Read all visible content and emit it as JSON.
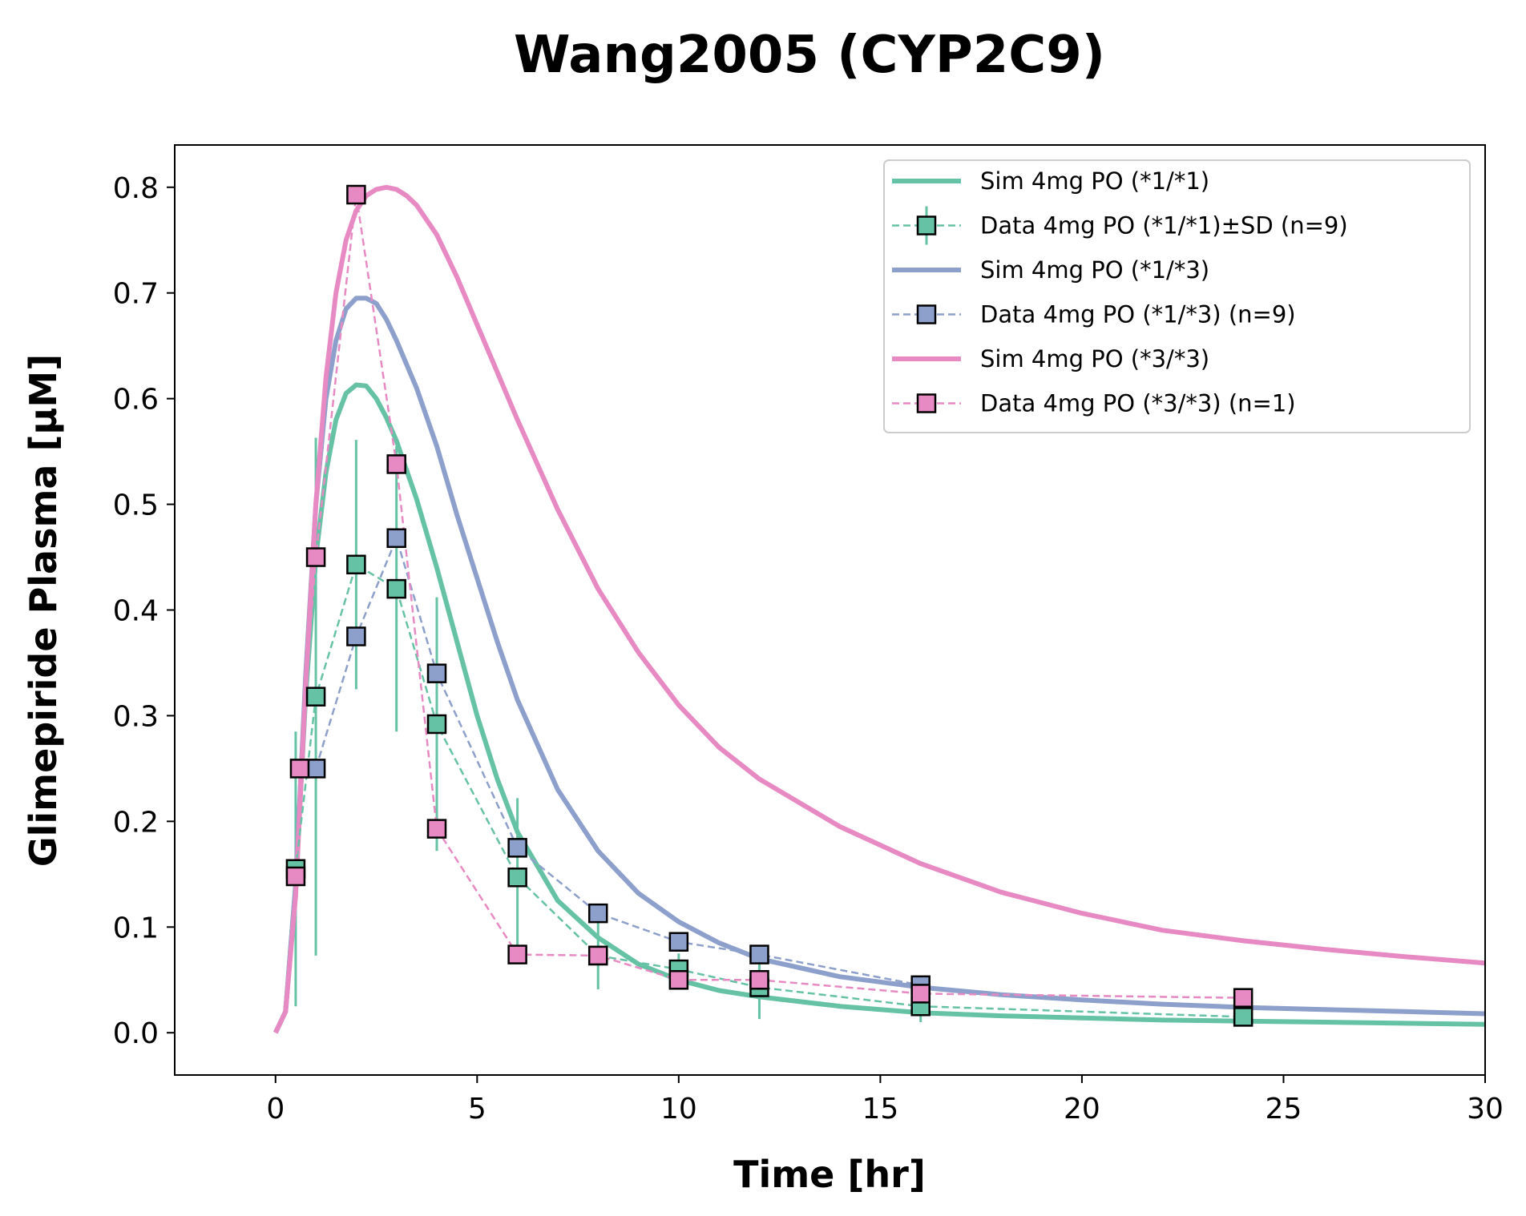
{
  "chart_data": {
    "type": "line",
    "title": "Wang2005 (CYP2C9)",
    "xlabel": "Time [hr]",
    "ylabel": "Glimepiride Plasma [µM]",
    "xlim": [
      -2.5,
      30
    ],
    "ylim": [
      -0.04,
      0.84
    ],
    "x_ticks": [
      0,
      5,
      10,
      15,
      20,
      25,
      30
    ],
    "y_ticks": [
      0.0,
      0.1,
      0.2,
      0.3,
      0.4,
      0.5,
      0.6,
      0.7,
      0.8
    ],
    "x_tick_labels": [
      "0",
      "5",
      "10",
      "15",
      "20",
      "25",
      "30"
    ],
    "y_tick_labels": [
      "0.0",
      "0.1",
      "0.2",
      "0.3",
      "0.4",
      "0.5",
      "0.6",
      "0.7",
      "0.8"
    ],
    "grid": false,
    "legend_position": "top-right",
    "colors": {
      "green": "#66c2a5",
      "blue": "#8da0cb",
      "pink": "#e78ac3"
    },
    "series": [
      {
        "name": "Sim 4mg PO (*1/*1)",
        "kind": "sim",
        "color": "#66c2a5",
        "x": [
          0,
          0.25,
          0.5,
          0.75,
          1.0,
          1.25,
          1.5,
          1.75,
          2.0,
          2.25,
          2.5,
          2.75,
          3.0,
          3.5,
          4.0,
          4.5,
          5.0,
          5.5,
          6.0,
          7.0,
          8.0,
          9.0,
          10.0,
          11.0,
          12.0,
          14.0,
          16.0,
          18.0,
          20.0,
          22.0,
          24.0,
          26.0,
          28.0,
          30.0
        ],
        "y": [
          0.0,
          0.02,
          0.14,
          0.32,
          0.45,
          0.53,
          0.58,
          0.605,
          0.613,
          0.612,
          0.6,
          0.582,
          0.56,
          0.505,
          0.44,
          0.37,
          0.3,
          0.24,
          0.19,
          0.125,
          0.09,
          0.065,
          0.05,
          0.04,
          0.034,
          0.025,
          0.019,
          0.016,
          0.014,
          0.012,
          0.011,
          0.01,
          0.009,
          0.008
        ]
      },
      {
        "name": "Data 4mg PO (*1/*1)±SD (n=9)",
        "kind": "data",
        "color": "#66c2a5",
        "x": [
          0.5,
          1,
          2,
          3,
          4,
          6,
          8,
          10,
          12,
          16,
          24
        ],
        "y": [
          0.155,
          0.318,
          0.443,
          0.42,
          0.292,
          0.147,
          0.073,
          0.06,
          0.043,
          0.025,
          0.015
        ],
        "sd": [
          0.13,
          0.245,
          0.118,
          0.135,
          0.12,
          0.075,
          0.032,
          0.015,
          0.03,
          0.015,
          0.005
        ]
      },
      {
        "name": "Sim 4mg PO (*1/*3)",
        "kind": "sim",
        "color": "#8da0cb",
        "x": [
          0,
          0.25,
          0.5,
          0.75,
          1.0,
          1.25,
          1.5,
          1.75,
          2.0,
          2.25,
          2.5,
          2.75,
          3.0,
          3.5,
          4.0,
          4.5,
          5.0,
          5.5,
          6.0,
          7.0,
          8.0,
          9.0,
          10.0,
          11.0,
          12.0,
          14.0,
          16.0,
          18.0,
          20.0,
          22.0,
          24.0,
          26.0,
          28.0,
          30.0
        ],
        "y": [
          0.0,
          0.02,
          0.14,
          0.34,
          0.5,
          0.6,
          0.655,
          0.685,
          0.695,
          0.695,
          0.69,
          0.675,
          0.655,
          0.61,
          0.555,
          0.49,
          0.43,
          0.37,
          0.315,
          0.23,
          0.172,
          0.132,
          0.105,
          0.085,
          0.07,
          0.053,
          0.043,
          0.036,
          0.031,
          0.027,
          0.024,
          0.022,
          0.02,
          0.018
        ]
      },
      {
        "name": "Data 4mg PO (*1/*3) (n=9)",
        "kind": "data",
        "color": "#8da0cb",
        "x": [
          1,
          2,
          3,
          4,
          6,
          8,
          10,
          12,
          16
        ],
        "y": [
          0.25,
          0.375,
          0.468,
          0.34,
          0.175,
          0.113,
          0.086,
          0.074,
          0.045
        ]
      },
      {
        "name": "Sim 4mg PO (*3/*3)",
        "kind": "sim",
        "color": "#e78ac3",
        "x": [
          0,
          0.25,
          0.5,
          0.75,
          1.0,
          1.25,
          1.5,
          1.75,
          2.0,
          2.25,
          2.5,
          2.75,
          3.0,
          3.25,
          3.5,
          4.0,
          4.5,
          5.0,
          5.5,
          6.0,
          7.0,
          8.0,
          9.0,
          10.0,
          11.0,
          12.0,
          14.0,
          16.0,
          18.0,
          20.0,
          22.0,
          24.0,
          26.0,
          28.0,
          30.0
        ],
        "y": [
          0.0,
          0.02,
          0.13,
          0.33,
          0.5,
          0.62,
          0.7,
          0.75,
          0.778,
          0.792,
          0.798,
          0.8,
          0.798,
          0.792,
          0.783,
          0.755,
          0.715,
          0.67,
          0.625,
          0.58,
          0.495,
          0.42,
          0.36,
          0.31,
          0.27,
          0.24,
          0.195,
          0.16,
          0.133,
          0.113,
          0.097,
          0.087,
          0.079,
          0.072,
          0.066
        ]
      },
      {
        "name": "Data 4mg PO (*3/*3) (n=1)",
        "kind": "data",
        "color": "#e78ac3",
        "x": [
          0.5,
          0.6,
          1,
          2,
          3,
          4,
          6,
          8,
          10,
          12,
          16,
          24
        ],
        "y": [
          0.148,
          0.25,
          0.45,
          0.793,
          0.538,
          0.193,
          0.074,
          0.073,
          0.05,
          0.05,
          0.037,
          0.033
        ]
      }
    ]
  }
}
